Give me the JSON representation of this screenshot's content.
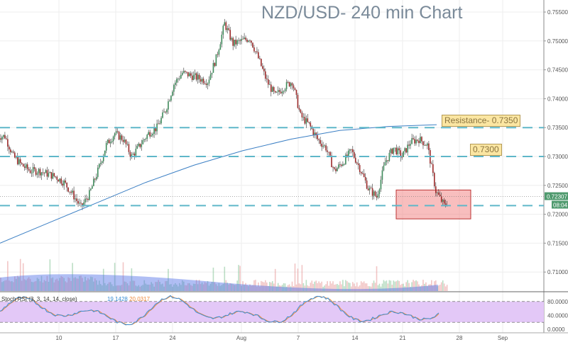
{
  "title": "NZD/USD- 240 min Chart",
  "annotations": {
    "resistance": "Resistance- 0.7350",
    "level": "0.7300"
  },
  "price_badge": {
    "price": "0.72307",
    "countdown": "08:04",
    "color": "#4f9a6e"
  },
  "stoch": {
    "label": "Stoch RSI (3, 3, 14, 14, close)",
    "k": "19.1428",
    "d": "20.0317",
    "k_color": "#3b8fd6",
    "d_color": "#f08a3c",
    "fill": "#e3c8f7"
  },
  "chart_data": {
    "type": "candlestick",
    "title": "NZD/USD- 240 min Chart",
    "y_ticks": [
      "0.75500",
      "0.75000",
      "0.74500",
      "0.74000",
      "0.73500",
      "0.73000",
      "0.72500",
      "0.72000",
      "0.71500",
      "0.71000"
    ],
    "ylim": [
      0.7063,
      0.7573
    ],
    "x_ticks": [
      "10",
      "17",
      "24",
      "Aug",
      "7",
      "14",
      "21",
      "28",
      "Sep"
    ],
    "stoch_ticks": [
      "80.0000",
      "40.0000",
      "0.0000"
    ],
    "horizontal_levels": [
      0.735,
      0.73,
      0.7215
    ],
    "highlight_box": {
      "price_top": 0.7242,
      "price_bottom": 0.7192
    },
    "daily_close_from_jul3": [
      0.7335,
      0.73,
      0.7285,
      0.7275,
      0.7275,
      0.727,
      0.7265,
      0.7255,
      0.7235,
      0.7212,
      0.7235,
      0.7275,
      0.732,
      0.734,
      0.733,
      0.73,
      0.732,
      0.734,
      0.735,
      0.738,
      0.7425,
      0.7445,
      0.744,
      0.7435,
      0.743,
      0.747,
      0.753,
      0.7495,
      0.75,
      0.7505,
      0.747,
      0.743,
      0.7405,
      0.742,
      0.743,
      0.737,
      0.7355,
      0.733,
      0.7315,
      0.7275,
      0.729,
      0.731,
      0.728,
      0.7245,
      0.723,
      0.729,
      0.7315,
      0.73,
      0.7325,
      0.733,
      0.732,
      0.724,
      0.7215,
      0.7231
    ],
    "moving_average": [
      0.715,
      0.7185,
      0.722,
      0.7255,
      0.7285,
      0.731,
      0.733,
      0.7345,
      0.7352,
      0.7355
    ],
    "colors": {
      "up": "#3d8a5a",
      "down": "#9b2a2a",
      "levels": "#5fb7c9",
      "ma": "#3b7fc4"
    }
  }
}
